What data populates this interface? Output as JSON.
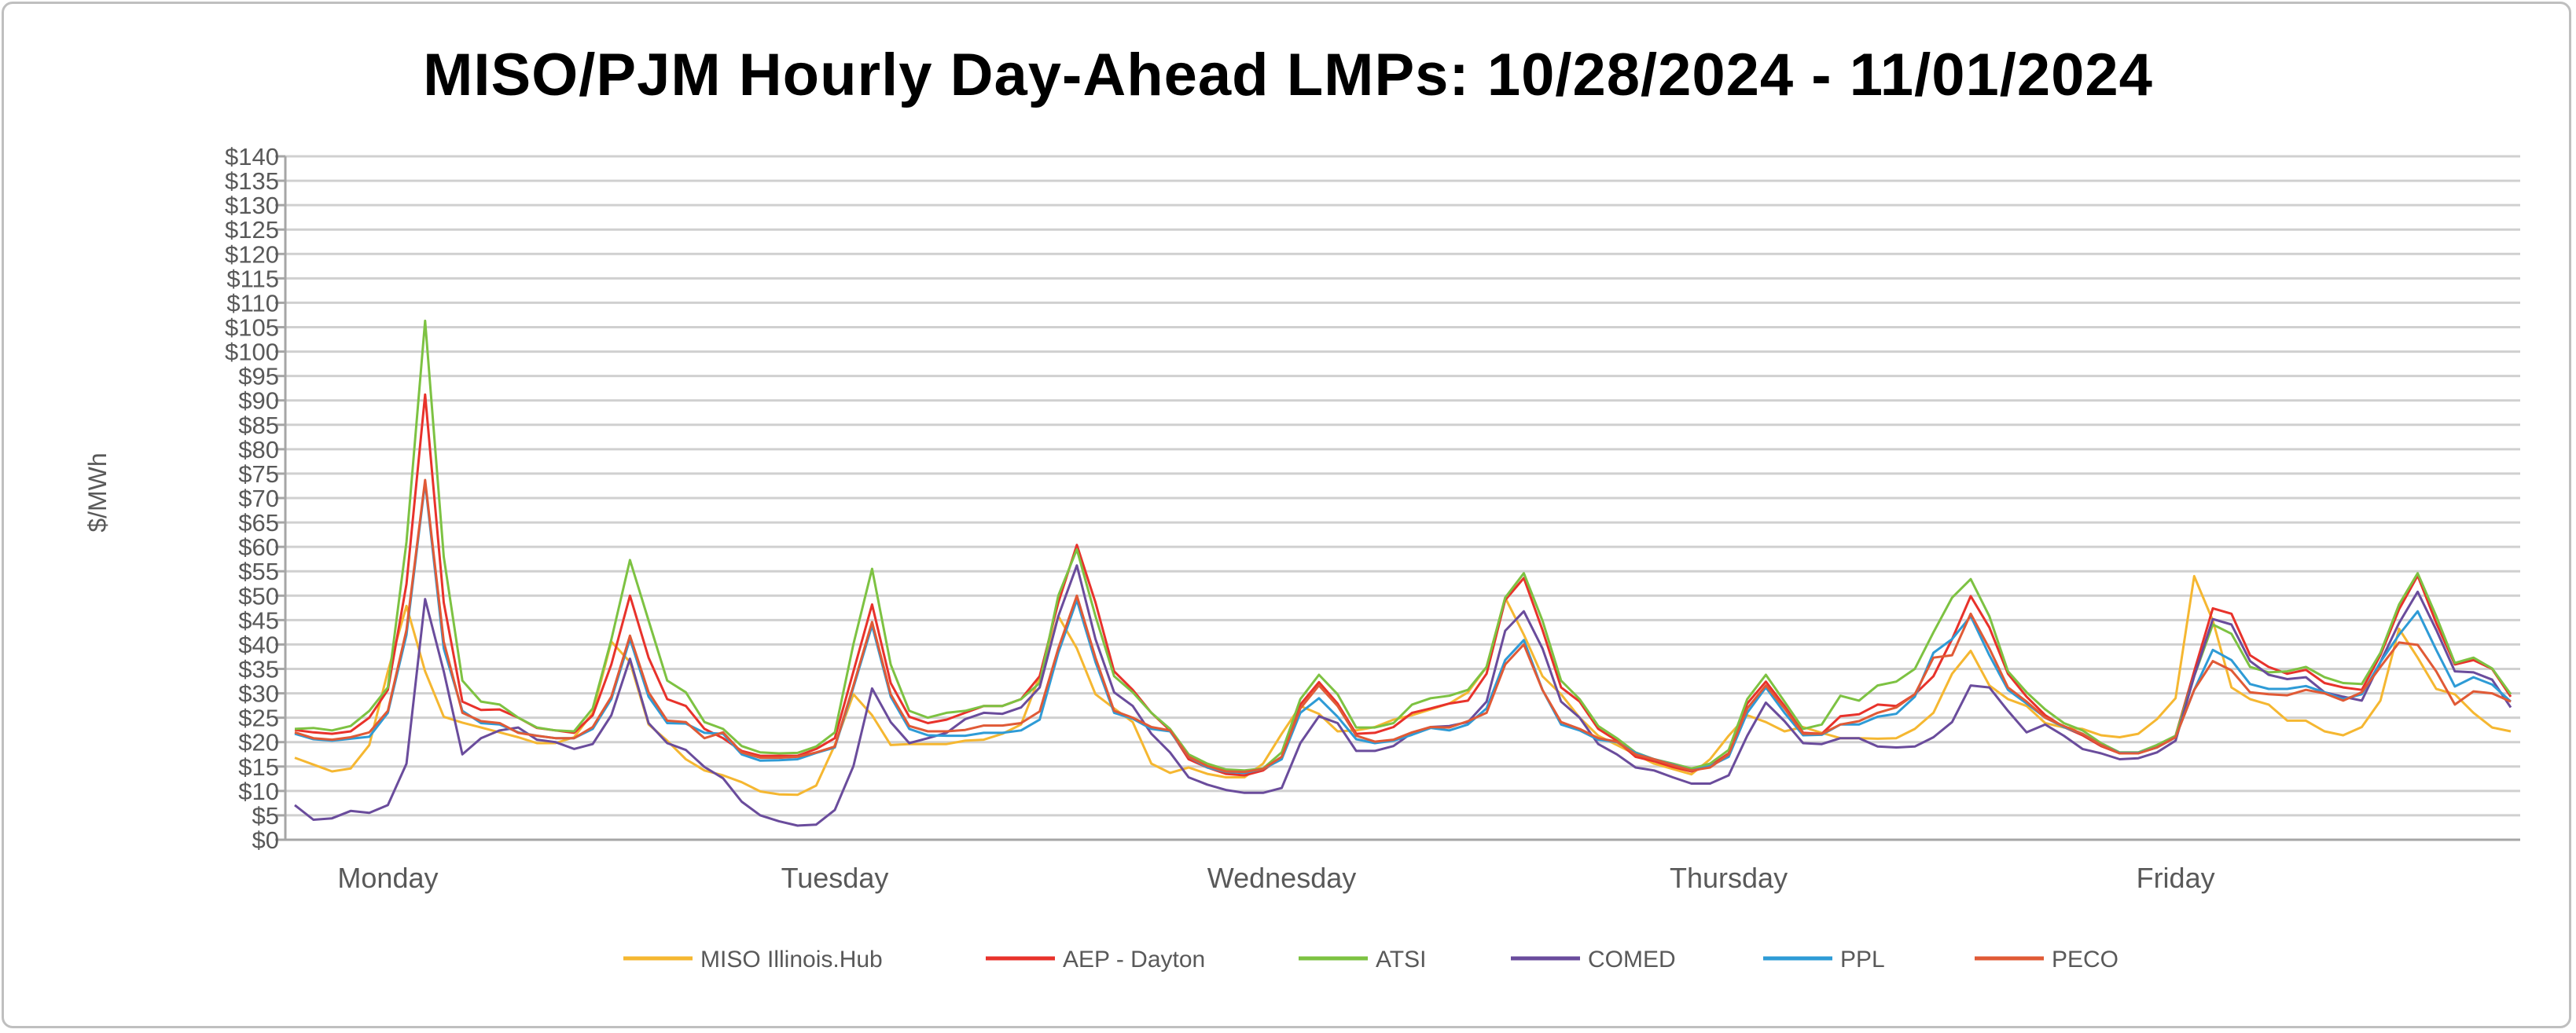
{
  "chart_data": {
    "type": "line",
    "title": "MISO/PJM Hourly Day-Ahead LMPs: 10/28/2024 - 11/01/2024",
    "xlabel": "",
    "ylabel": "$/MWh",
    "ylim": [
      0,
      140
    ],
    "ytick_step": 5,
    "ytick_prefix": "$",
    "grid": true,
    "legend_position": "bottom",
    "points_per_day": 24,
    "day_labels": [
      "Monday",
      "Tuesday",
      "Wednesday",
      "Thursday",
      "Friday"
    ],
    "series": [
      {
        "name": "MISO Illinois.Hub",
        "color": "#F5B731",
        "values": [
          16.8,
          15.4,
          14,
          14.6,
          19.4,
          34.5,
          47.9,
          34.5,
          25.2,
          24,
          23,
          22,
          21,
          19.8,
          19.8,
          21,
          26,
          40.6,
          36.4,
          23.6,
          20.3,
          16.5,
          14.2,
          13.2,
          11.8,
          9.9,
          9.3,
          9.2,
          11.1,
          19.4,
          29.8,
          25.5,
          19.4,
          19.6,
          19.6,
          19.6,
          20.3,
          20.5,
          21.7,
          23.6,
          33.5,
          45.8,
          39.2,
          29.8,
          26.9,
          24.1,
          15.6,
          13.7,
          14.8,
          13.5,
          12.8,
          12.8,
          15.6,
          21.7,
          27.4,
          25.8,
          22.2,
          22.4,
          23.1,
          24.6,
          25.5,
          26.7,
          27.9,
          30.2,
          35.4,
          49.6,
          42,
          33.5,
          29.8,
          25,
          21.3,
          19.4,
          17.5,
          15.6,
          14.5,
          13.4,
          16.5,
          21.3,
          25.5,
          24.1,
          22.2,
          23.1,
          21.9,
          20.8,
          20.8,
          20.7,
          20.8,
          22.7,
          26,
          34,
          38.7,
          31.6,
          28.8,
          27.4,
          23.9,
          23,
          22.7,
          21.4,
          21,
          21.7,
          24.7,
          29,
          54,
          44.9,
          31.2,
          28.8,
          27.7,
          24.4,
          24.4,
          22.2,
          21.4,
          23.1,
          28.5,
          43.2,
          37.3,
          30.9,
          29.8,
          26,
          23,
          22.2
        ]
      },
      {
        "name": "AEP - Dayton",
        "color": "#E8322B",
        "values": [
          22.5,
          22,
          21.7,
          22.2,
          25,
          30.7,
          52.4,
          91.2,
          48.6,
          28.3,
          26.6,
          26.7,
          25,
          22.9,
          22.4,
          21.9,
          25.5,
          35.9,
          50,
          37.3,
          28.8,
          27.4,
          22.7,
          20.8,
          18.2,
          17.2,
          17.2,
          17.2,
          18.6,
          20.8,
          34.5,
          48.2,
          32.1,
          25.2,
          23.9,
          24.6,
          26,
          27.4,
          27.4,
          28.8,
          33.5,
          48.6,
          60.4,
          48.6,
          34.5,
          30.7,
          26,
          22.4,
          16.5,
          14.8,
          13.5,
          13.2,
          14.2,
          17,
          27.7,
          32.3,
          27.9,
          21.7,
          21.9,
          23.1,
          26,
          26.9,
          27.9,
          28.5,
          34,
          49.1,
          53.6,
          43,
          31.2,
          28.3,
          22.7,
          20.3,
          17,
          16.1,
          14.9,
          14,
          15.1,
          17.7,
          27.9,
          32.4,
          27.4,
          21.9,
          21.7,
          25.3,
          25.7,
          27.7,
          27.4,
          29.8,
          33.5,
          41.1,
          49.9,
          43.5,
          34,
          29.3,
          25.5,
          23.1,
          21.4,
          19.2,
          17.7,
          17.7,
          18.9,
          21.3,
          34.5,
          47.4,
          46.3,
          37.8,
          35.4,
          34,
          34.8,
          32.1,
          31.2,
          30.7,
          37.8,
          47.2,
          54.1,
          44.4,
          35.9,
          36.8,
          35,
          29.3
        ]
      },
      {
        "name": "ATSI",
        "color": "#7DC242",
        "values": [
          22.7,
          22.9,
          22.4,
          23.3,
          26.4,
          31.2,
          61,
          106.3,
          58,
          32.6,
          28.3,
          27.7,
          25,
          23,
          22.4,
          22.2,
          26.9,
          41,
          57.3,
          44.9,
          32.6,
          30.2,
          24.1,
          22.7,
          19.2,
          17.9,
          17.7,
          17.8,
          19.1,
          22,
          40.1,
          55.5,
          35.9,
          26.4,
          25,
          26,
          26.4,
          27.4,
          27.4,
          28.8,
          32.1,
          50,
          59.5,
          45.8,
          33.5,
          30.2,
          26,
          22.7,
          17.5,
          15.6,
          14.4,
          14.2,
          14.6,
          17.9,
          28.8,
          33.8,
          29.8,
          23,
          23,
          23.9,
          27.7,
          29,
          29.5,
          30.7,
          35.4,
          49.6,
          54.6,
          44.9,
          32.6,
          28.8,
          23.3,
          20.8,
          17.9,
          16.5,
          15.6,
          14.6,
          15.6,
          18.4,
          28.8,
          33.8,
          28.3,
          22.7,
          23.6,
          29.5,
          28.5,
          31.6,
          32.4,
          35,
          42.5,
          49.6,
          53.4,
          45.8,
          34.5,
          30.2,
          26.7,
          23.9,
          22.4,
          19.8,
          17.9,
          17.9,
          19.4,
          21.3,
          33.5,
          44.1,
          42.2,
          35.4,
          34.3,
          34.5,
          35.4,
          33.3,
          32.1,
          31.9,
          38.3,
          48.2,
          54.6,
          45.8,
          36.2,
          37.3,
          35.1,
          29.8
        ]
      },
      {
        "name": "COMED",
        "color": "#6A4C9C",
        "values": [
          7.1,
          4.1,
          4.4,
          5.9,
          5.5,
          7.1,
          15.6,
          49.3,
          34.5,
          17.5,
          20.8,
          22.4,
          23,
          20.5,
          20,
          18.6,
          19.6,
          25.5,
          37.1,
          23.9,
          19.8,
          18.4,
          14.9,
          12.6,
          7.8,
          5,
          3.8,
          2.9,
          3.1,
          6.1,
          15.1,
          31,
          24.1,
          19.8,
          20.8,
          21.9,
          24.7,
          26,
          25.8,
          27.1,
          31.2,
          45.8,
          56.2,
          41.1,
          30.2,
          27.4,
          21.7,
          17.9,
          12.8,
          11.3,
          10.2,
          9.6,
          9.6,
          10.6,
          19.8,
          25.3,
          23.9,
          18.2,
          18.2,
          19.2,
          21.9,
          23.1,
          23.3,
          24.1,
          28.3,
          42.8,
          46.8,
          39.2,
          28.3,
          25,
          19.6,
          17.5,
          14.8,
          14.2,
          12.8,
          11.5,
          11.5,
          13.2,
          21.3,
          28.1,
          24.3,
          19.8,
          19.6,
          20.8,
          20.8,
          19.1,
          18.9,
          19.1,
          21,
          24.1,
          31.6,
          31.2,
          26.4,
          22,
          23.6,
          21.3,
          18.6,
          17.7,
          16.5,
          16.7,
          17.9,
          20.3,
          33.5,
          45.2,
          44.1,
          36.6,
          33.8,
          32.9,
          33.3,
          30.2,
          29.3,
          28.5,
          36.4,
          44.4,
          50.8,
          43,
          34.5,
          34.3,
          32.8,
          27.1
        ]
      },
      {
        "name": "PPL",
        "color": "#2E9BD6",
        "values": [
          21.7,
          20.6,
          20.3,
          20.7,
          21.1,
          26,
          42,
          73.2,
          39.2,
          26.4,
          23.9,
          23.6,
          22,
          21.3,
          20.8,
          20.8,
          22.7,
          28.8,
          41.1,
          29.3,
          23.9,
          23.8,
          21.9,
          21.7,
          17.5,
          16.2,
          16.3,
          16.5,
          17.8,
          18.9,
          31.2,
          43.9,
          29.3,
          22.7,
          21.4,
          21.3,
          21.3,
          21.9,
          21.9,
          22.4,
          24.6,
          38.3,
          49.1,
          36.4,
          26,
          24.8,
          22.7,
          22.2,
          17,
          14.8,
          13.9,
          13.7,
          14.5,
          16.5,
          26,
          29,
          25.2,
          20.6,
          19.8,
          20.3,
          21.5,
          22.9,
          22.4,
          23.6,
          26.9,
          36.8,
          40.9,
          30.7,
          23.6,
          22.4,
          20.5,
          20,
          17.8,
          16.5,
          15.4,
          14.2,
          15.1,
          17,
          26,
          31.2,
          26,
          21.4,
          21.5,
          23.6,
          23.6,
          25.2,
          25.8,
          29.3,
          38.3,
          41.1,
          45.8,
          37.8,
          30.7,
          27.9,
          25,
          23.1,
          21.7,
          19.4,
          17.8,
          17.8,
          18.9,
          21,
          30.7,
          38.9,
          36.8,
          31.9,
          30.9,
          30.9,
          31.5,
          30.2,
          28.8,
          29.8,
          36.4,
          42,
          46.8,
          38.9,
          31.4,
          33.3,
          31.8,
          28.3
        ]
      },
      {
        "name": "PECO",
        "color": "#E05A36",
        "values": [
          22,
          20.8,
          20.5,
          21,
          22,
          26.4,
          43,
          73.7,
          40.6,
          26,
          24.3,
          23.9,
          21.9,
          21.3,
          20.8,
          20.8,
          23.1,
          29.3,
          41.8,
          30.2,
          24.4,
          24.1,
          20.8,
          22,
          17.9,
          16.8,
          16.8,
          17,
          17.9,
          19.1,
          31.6,
          44.6,
          29.8,
          23.3,
          22.2,
          22.2,
          22.5,
          23.4,
          23.4,
          23.9,
          26.3,
          39.2,
          50,
          37.3,
          26.4,
          25,
          23.1,
          22.4,
          17,
          15.1,
          14,
          13.9,
          14.5,
          17,
          26.9,
          31.6,
          27.4,
          21.3,
          20.1,
          20.5,
          22,
          23.1,
          23,
          24.3,
          26,
          35.9,
          40,
          30.7,
          24.1,
          22.7,
          20.8,
          20.1,
          17.5,
          16.5,
          15.3,
          14.2,
          14.8,
          17.5,
          26.9,
          31.6,
          26.9,
          21.7,
          21.7,
          23.6,
          24.3,
          26,
          27.1,
          29.8,
          37.3,
          37.8,
          46.3,
          39.2,
          31.2,
          28.3,
          25,
          23.3,
          21.7,
          19.4,
          17.7,
          17.7,
          18.9,
          21,
          30.7,
          36.6,
          34.7,
          30.2,
          29.8,
          29.6,
          30.7,
          30,
          28.5,
          30.2,
          35.4,
          40.4,
          39.9,
          34.5,
          27.7,
          30.4,
          30,
          28.3
        ]
      }
    ]
  }
}
